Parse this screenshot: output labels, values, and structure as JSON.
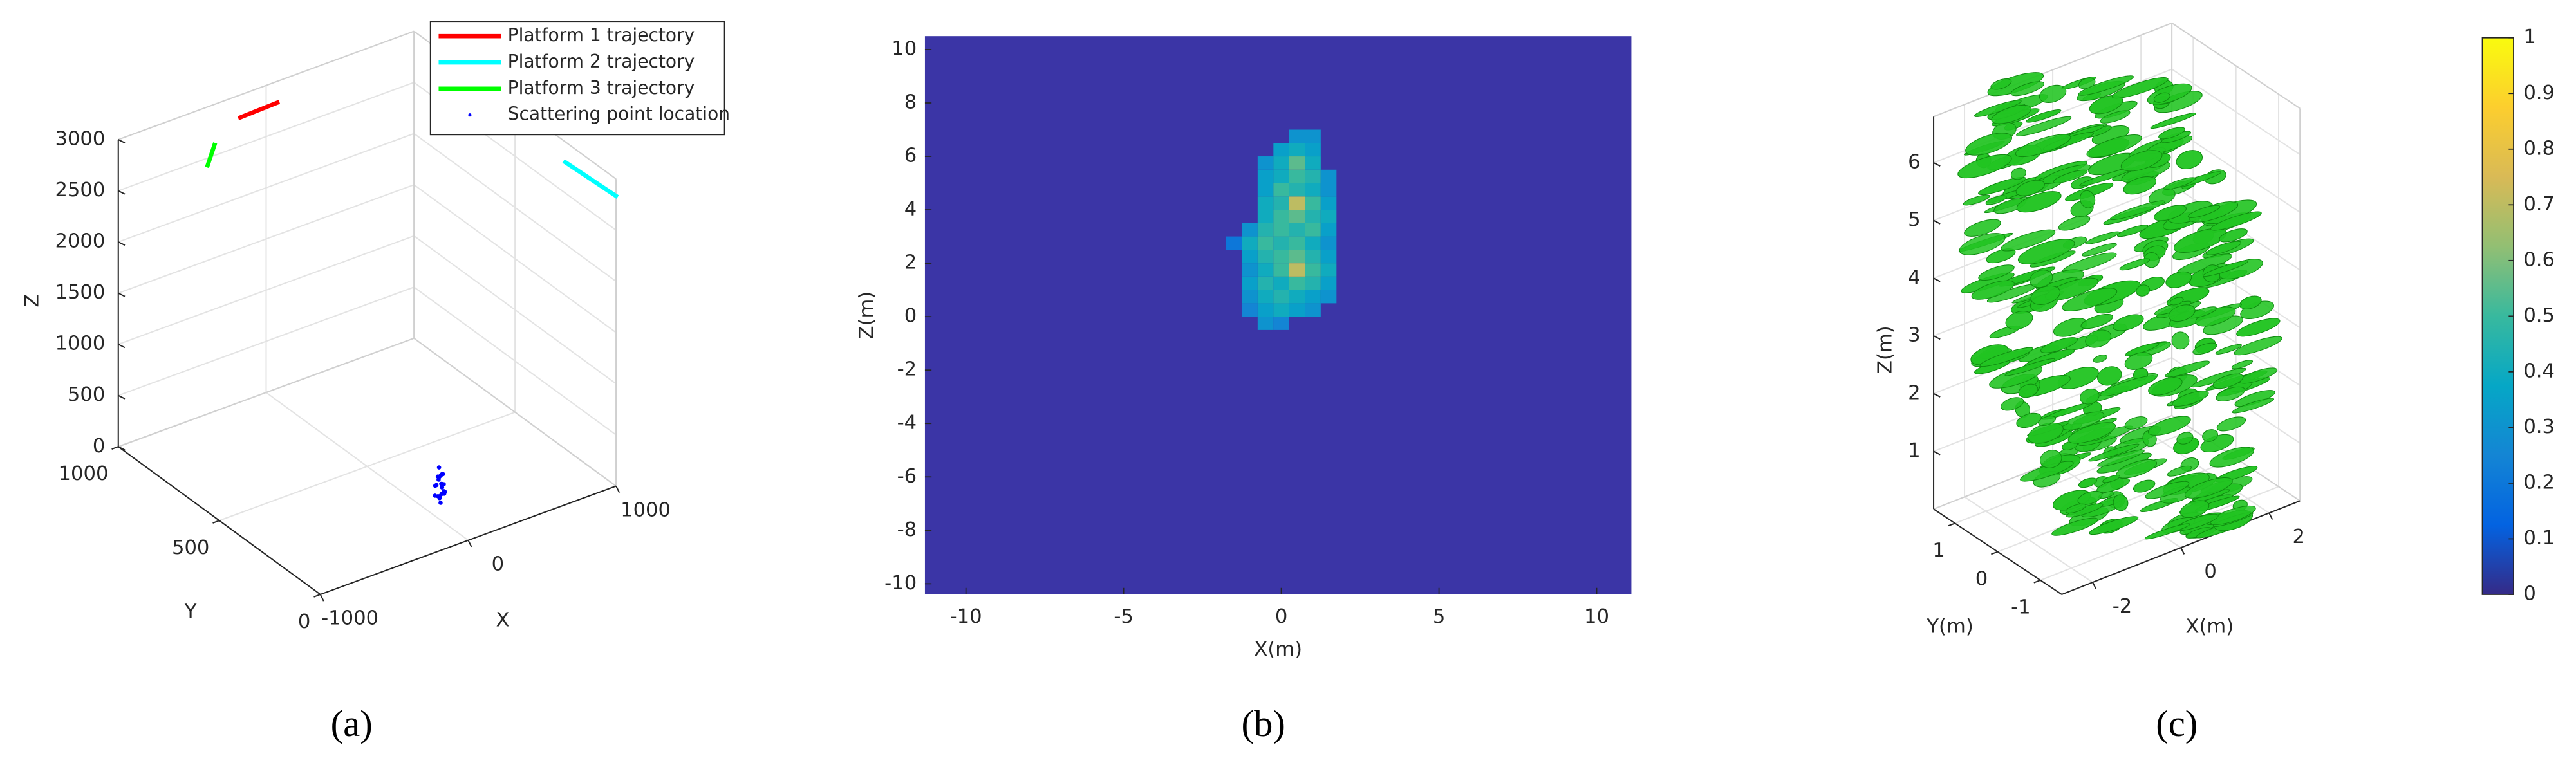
{
  "chart_data": [
    {
      "type": "3d",
      "panel_label": "(a)",
      "xlabel": "X",
      "ylabel": "Y",
      "zlabel": "Z",
      "xlim": [
        -1000,
        1000
      ],
      "ylim": [
        0,
        1000
      ],
      "zlim": [
        0,
        3000
      ],
      "xticks": [
        -1000,
        0,
        1000
      ],
      "yticks": [
        0,
        500,
        1000
      ],
      "zticks": [
        0,
        500,
        1000,
        1500,
        2000,
        2500,
        3000
      ],
      "grid": true,
      "legend": "northeast",
      "series": [
        {
          "name": "Platform 1 trajectory",
          "color": "#ff0000",
          "mode": "lines",
          "x": [
            -328,
            -42
          ],
          "y": [
            898,
            904
          ],
          "z": [
            3000,
            3000
          ]
        },
        {
          "name": "Platform 2 trajectory",
          "color": "#00ffff",
          "mode": "lines",
          "x": [
            874,
            896
          ],
          "y": [
            168,
            -84
          ],
          "z": [
            3000,
            3000
          ]
        },
        {
          "name": "Platform 3 trajectory",
          "color": "#00ff00",
          "mode": "lines",
          "x": [
            -772,
            -584
          ],
          "y": [
            728,
            825
          ],
          "z": [
            3000,
            3000
          ]
        },
        {
          "name": "Scattering point location",
          "color": "#0000ff",
          "mode": "markers",
          "x": [
            100,
            110,
            120,
            130,
            105,
            125,
            115,
            135,
            98,
            112,
            128,
            118,
            108,
            122,
            132,
            102,
            116,
            126,
            112,
            120,
            106,
            124,
            114,
            130
          ],
          "y": [
            210,
            230,
            220,
            215,
            240,
            225,
            205,
            235,
            222,
            212,
            238,
            228,
            218,
            208,
            226,
            232,
            214,
            236,
            224,
            216,
            242,
            206,
            230,
            220
          ],
          "z": [
            10,
            40,
            70,
            100,
            130,
            160,
            190,
            220,
            250,
            280,
            300,
            20,
            60,
            90,
            120,
            150,
            180,
            210,
            240,
            270,
            30,
            110,
            200,
            260
          ]
        }
      ]
    },
    {
      "type": "image",
      "panel_label": "(b)",
      "xlabel": "X(m)",
      "ylabel": "Z(m)",
      "xlim": [
        -11.3,
        11.1
      ],
      "ylim": [
        -10.4,
        10.5
      ],
      "xticks": [
        -10,
        -5,
        0,
        5,
        10
      ],
      "yticks": [
        -10,
        -8,
        -6,
        -4,
        -2,
        0,
        2,
        4,
        6,
        8,
        10
      ],
      "background_color": "#3b35a6",
      "x": [
        -1.5,
        -1,
        -0.5,
        0,
        0.5,
        1,
        1.5,
        2
      ],
      "y": [
        -0.25,
        0.25,
        0.75,
        1.25,
        1.75,
        2.25,
        2.75,
        3.25,
        3.75,
        4.25,
        4.75,
        5.25,
        5.75,
        6.25,
        6.75
      ],
      "values": [
        [
          null,
          null,
          0.3,
          0.25,
          null,
          null,
          null,
          null
        ],
        [
          null,
          0.25,
          0.35,
          0.4,
          0.35,
          0.3,
          null,
          null
        ],
        [
          null,
          0.3,
          0.4,
          0.45,
          0.4,
          0.35,
          0.3,
          null
        ],
        [
          null,
          0.35,
          0.45,
          0.4,
          0.5,
          0.45,
          0.35,
          null
        ],
        [
          null,
          0.3,
          0.4,
          0.5,
          0.7,
          0.5,
          0.4,
          null
        ],
        [
          null,
          0.35,
          0.45,
          0.5,
          0.55,
          0.45,
          0.35,
          null
        ],
        [
          0.2,
          0.4,
          0.5,
          0.45,
          0.5,
          0.4,
          0.3,
          null
        ],
        [
          null,
          0.3,
          0.45,
          0.5,
          0.45,
          0.5,
          0.35,
          null
        ],
        [
          null,
          null,
          0.4,
          0.5,
          0.55,
          0.45,
          0.4,
          null
        ],
        [
          null,
          null,
          0.4,
          0.45,
          0.7,
          0.5,
          0.35,
          null
        ],
        [
          null,
          null,
          0.35,
          0.5,
          0.45,
          0.4,
          0.3,
          null
        ],
        [
          null,
          null,
          0.35,
          0.4,
          0.5,
          0.45,
          0.3,
          null
        ],
        [
          null,
          null,
          0.3,
          0.4,
          0.55,
          0.4,
          null,
          null
        ],
        [
          null,
          null,
          null,
          0.35,
          0.4,
          0.35,
          null,
          null
        ],
        [
          null,
          null,
          null,
          null,
          0.3,
          0.3,
          null,
          null
        ]
      ]
    },
    {
      "type": "isosurface",
      "panel_label": "(c)",
      "xlabel": "X(m)",
      "ylabel": "Y(m)",
      "zlabel": "Z(m)",
      "xlim": [
        -2.7,
        2.7
      ],
      "ylim": [
        -1.5,
        1.5
      ],
      "zlim": [
        0,
        6.8
      ],
      "xticks": [
        -2,
        0,
        2
      ],
      "yticks": [
        -1,
        0,
        1
      ],
      "zticks": [
        1,
        2,
        3,
        4,
        5,
        6
      ],
      "grid": true,
      "surface_color": "#22c422",
      "colorbar": {
        "clim": [
          0,
          1
        ],
        "ticks": [
          0,
          0.1,
          0.2,
          0.3,
          0.4,
          0.5,
          0.6,
          0.7,
          0.8,
          0.9,
          1
        ],
        "colormap": [
          "#352a87",
          "#0363e1",
          "#1485d4",
          "#06a7c6",
          "#38b99e",
          "#92bf73",
          "#d9ba56",
          "#fcce2e",
          "#f9fb0e"
        ]
      }
    }
  ]
}
